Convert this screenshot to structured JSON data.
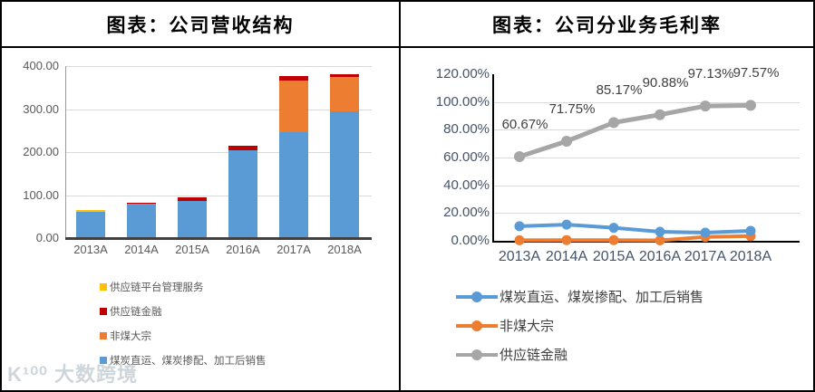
{
  "watermark": {
    "logo": "K¹⁰⁰",
    "text": "大数跨境"
  },
  "chart_data": [
    {
      "type": "bar",
      "stacked": true,
      "title": "图表：公司营收结构",
      "xlabel": "",
      "ylabel": "",
      "categories": [
        "2013A",
        "2014A",
        "2015A",
        "2016A",
        "2017A",
        "2018A"
      ],
      "series": [
        {
          "name": "煤炭直运、煤炭掺配、加工后销售",
          "color": "#5B9BD5",
          "values": [
            62,
            79,
            87,
            205,
            247,
            294
          ]
        },
        {
          "name": "非煤大宗",
          "color": "#ED7D31",
          "values": [
            0,
            0,
            0,
            0,
            120,
            80
          ]
        },
        {
          "name": "供应链金融",
          "color": "#C00000",
          "values": [
            0,
            4,
            7,
            10,
            10,
            8
          ]
        },
        {
          "name": "供应链平台管理服务",
          "color": "#FFC000",
          "values": [
            3,
            0,
            0,
            0,
            0,
            0
          ]
        }
      ],
      "ylim": [
        0,
        400
      ],
      "yticks": [
        {
          "label": "400.00",
          "value": 400
        },
        {
          "label": "300.00",
          "value": 300
        },
        {
          "label": "200.00",
          "value": 200
        },
        {
          "label": "100.00",
          "value": 100
        },
        {
          "label": "0.00",
          "value": 0
        }
      ],
      "grid": true,
      "legend_position": "bottom-left"
    },
    {
      "type": "line",
      "title": "图表：公司分业务毛利率",
      "xlabel": "",
      "ylabel": "",
      "categories": [
        "2013A",
        "2014A",
        "2015A",
        "2016A",
        "2017A",
        "2018A"
      ],
      "series": [
        {
          "name": "煤炭直运、煤炭掺配、加工后销售",
          "color": "#5B9BD5",
          "values": [
            10.5,
            11.7,
            9.4,
            6.5,
            5.9,
            7.2
          ]
        },
        {
          "name": "非煤大宗",
          "color": "#ED7D31",
          "values": [
            0.4,
            0.5,
            0.5,
            0.3,
            2.8,
            3.4
          ]
        },
        {
          "name": "供应链金融",
          "color": "#A6A6A6",
          "values": [
            60.67,
            71.75,
            85.17,
            90.88,
            97.13,
            97.57
          ],
          "labels": [
            "60.67%",
            "71.75%",
            "85.17%",
            "90.88%",
            "97.13%",
            "97.57%"
          ]
        }
      ],
      "ylim": [
        0,
        120
      ],
      "yticks": [
        {
          "label": "120.00%",
          "value": 120
        },
        {
          "label": "100.00%",
          "value": 100
        },
        {
          "label": "80.00%",
          "value": 80
        },
        {
          "label": "60.00%",
          "value": 60
        },
        {
          "label": "40.00%",
          "value": 40
        },
        {
          "label": "20.00%",
          "value": 20
        },
        {
          "label": "0.00%",
          "value": 0
        }
      ],
      "grid": true,
      "legend_position": "bottom-left"
    }
  ]
}
